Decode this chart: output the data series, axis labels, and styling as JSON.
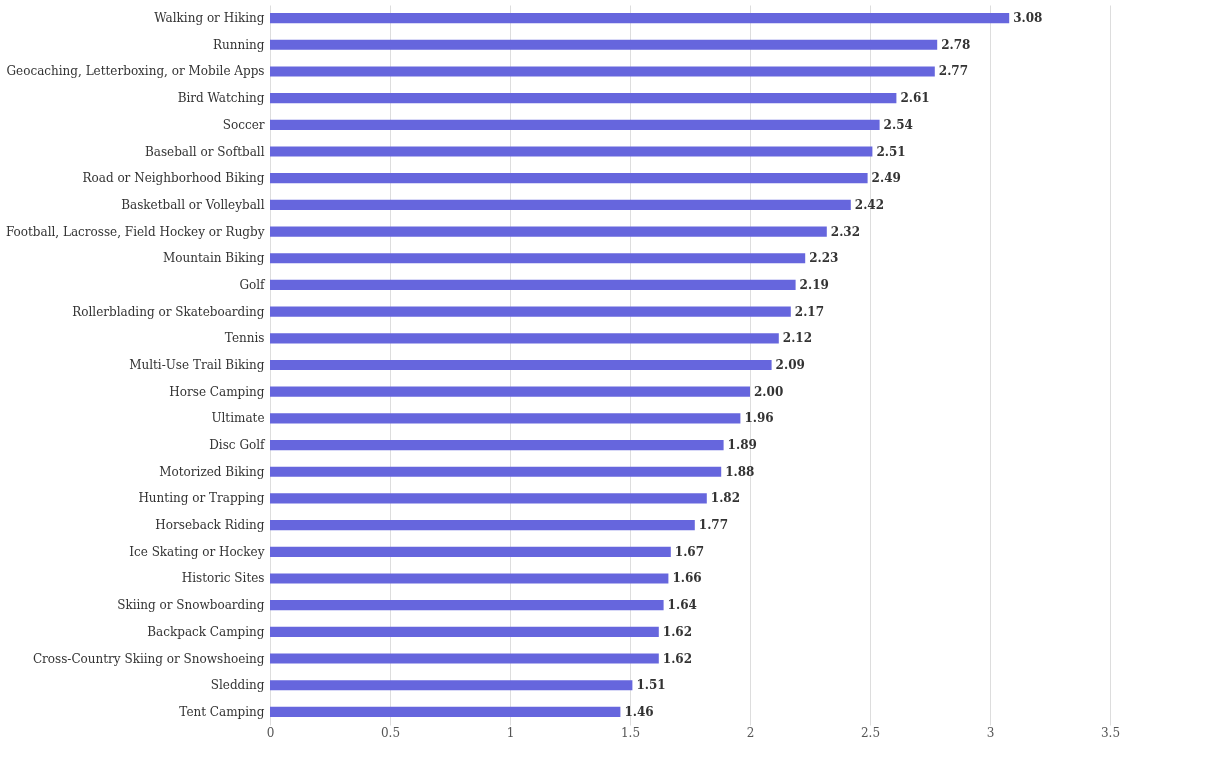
{
  "chart_data": {
    "type": "bar",
    "orientation": "horizontal",
    "categories": [
      "Walking or Hiking",
      "Running",
      "Geocaching, Letterboxing, or Mobile Apps",
      "Bird Watching",
      "Soccer",
      "Baseball or Softball",
      "Road or Neighborhood Biking",
      "Basketball or Volleyball",
      "Football, Lacrosse, Field Hockey or Rugby",
      "Mountain Biking",
      "Golf",
      "Rollerblading or Skateboarding",
      "Tennis",
      "Multi-Use Trail Biking",
      "Horse Camping",
      "Ultimate",
      "Disc Golf",
      "Motorized Biking",
      "Hunting or Trapping",
      "Horseback Riding",
      "Ice Skating or Hockey",
      "Historic Sites",
      "Skiing or Snowboarding",
      "Backpack Camping",
      "Cross-Country Skiing or Snowshoeing",
      "Sledding",
      "Tent Camping"
    ],
    "values": [
      3.08,
      2.78,
      2.77,
      2.61,
      2.54,
      2.51,
      2.49,
      2.42,
      2.32,
      2.23,
      2.19,
      2.17,
      2.12,
      2.09,
      2.0,
      1.96,
      1.89,
      1.88,
      1.82,
      1.77,
      1.67,
      1.66,
      1.64,
      1.62,
      1.62,
      1.51,
      1.46
    ],
    "value_labels": [
      "3.08",
      "2.78",
      "2.77",
      "2.61",
      "2.54",
      "2.51",
      "2.49",
      "2.42",
      "2.32",
      "2.23",
      "2.19",
      "2.17",
      "2.12",
      "2.09",
      "2.00",
      "1.96",
      "1.89",
      "1.88",
      "1.82",
      "1.77",
      "1.67",
      "1.66",
      "1.64",
      "1.62",
      "1.62",
      "1.51",
      "1.46"
    ],
    "color": "#6666dd",
    "xlim": [
      0,
      3.5
    ],
    "xticks": [
      0,
      0.5,
      1,
      1.5,
      2,
      2.5,
      3,
      3.5
    ],
    "grid": "x"
  }
}
